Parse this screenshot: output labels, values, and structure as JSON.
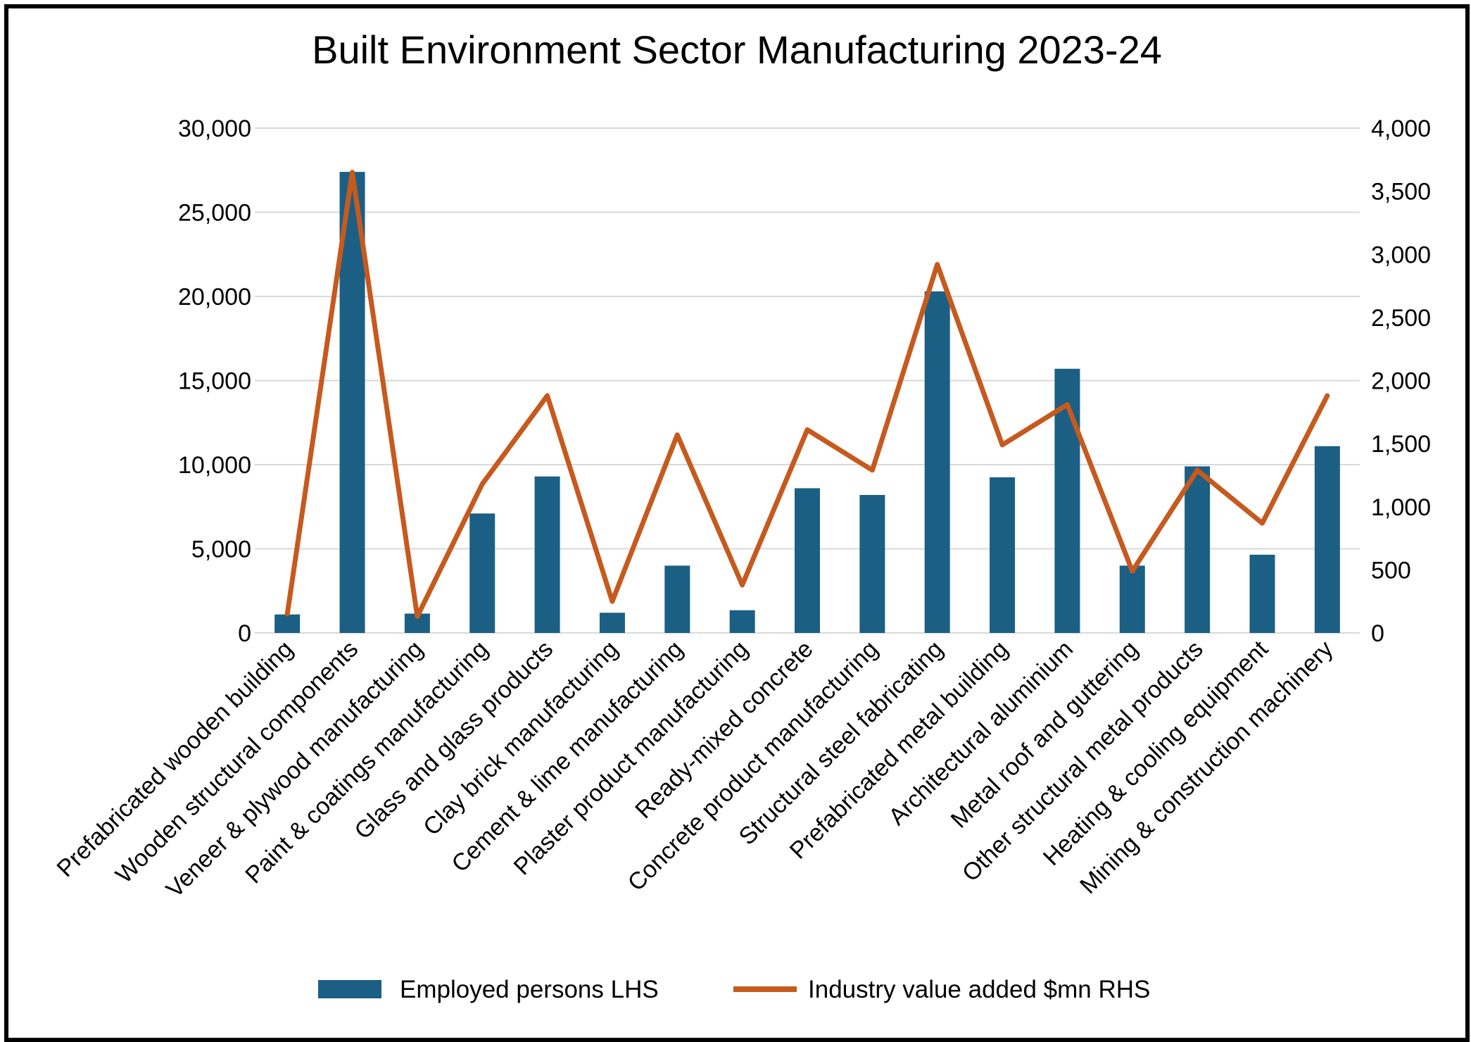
{
  "chart_data": {
    "type": "bar",
    "title": "Built Environment Sector Manufacturing 2023-24",
    "categories": [
      "Prefabricated wooden building",
      "Wooden structural components",
      "Veneer & plywood manufacturing",
      "Paint & coatings manufacturing",
      "Glass and glass products",
      "Clay brick manufacturing",
      "Cement & lime manufacturing",
      "Plaster product manufacturing",
      "Ready-mixed concrete",
      "Concrete product manufacturing",
      "Structural steel fabricating",
      "Prefabricated metal building",
      "Architectural aluminium",
      "Metal roof and guttering",
      "Other structural metal products",
      "Heating & cooling equipment",
      "Mining & construction machinery"
    ],
    "series": [
      {
        "name": "Employed persons LHS",
        "type": "bar",
        "axis": "left",
        "color": "#1b5f84",
        "values": [
          1100,
          27400,
          1150,
          7100,
          9300,
          1200,
          4000,
          1350,
          8600,
          8200,
          20300,
          9250,
          15700,
          4000,
          9900,
          4650,
          11100
        ]
      },
      {
        "name": "Industry value added $mn RHS",
        "type": "line",
        "axis": "right",
        "color": "#c65a1e",
        "values": [
          150,
          3650,
          130,
          1180,
          1880,
          250,
          1570,
          380,
          1610,
          1290,
          2920,
          1490,
          1810,
          490,
          1290,
          870,
          1880
        ]
      }
    ],
    "y_left": {
      "ylim": [
        0,
        30000
      ],
      "ticks": [
        "0",
        "5,000",
        "10,000",
        "15,000",
        "20,000",
        "25,000",
        "30,000"
      ]
    },
    "y_right": {
      "ylim": [
        0,
        4000
      ],
      "ticks": [
        "0",
        "500",
        "1,000",
        "1,500",
        "2,000",
        "2,500",
        "3,000",
        "3,500",
        "4,000"
      ]
    },
    "grid": true,
    "legend_position": "bottom"
  }
}
